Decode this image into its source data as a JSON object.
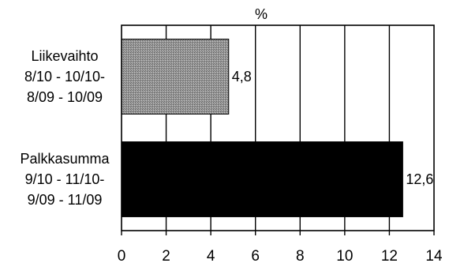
{
  "chart_data": {
    "type": "bar",
    "orientation": "horizontal",
    "unit_label": "%",
    "categories": [
      [
        "Liikevaihto",
        "8/10 - 10/10-",
        "8/09 - 10/09"
      ],
      [
        "Palkkasumma",
        "9/10 - 11/10-",
        "9/09 - 11/09"
      ]
    ],
    "values": [
      4.8,
      12.6
    ],
    "value_labels": [
      "4,8",
      "12,6"
    ],
    "bar_colors": [
      "#8f8f8f",
      "#000000"
    ],
    "xlim": [
      0,
      14
    ],
    "xticks": [
      0,
      2,
      4,
      6,
      8,
      10,
      12,
      14
    ],
    "grid": true,
    "legend": "none"
  }
}
